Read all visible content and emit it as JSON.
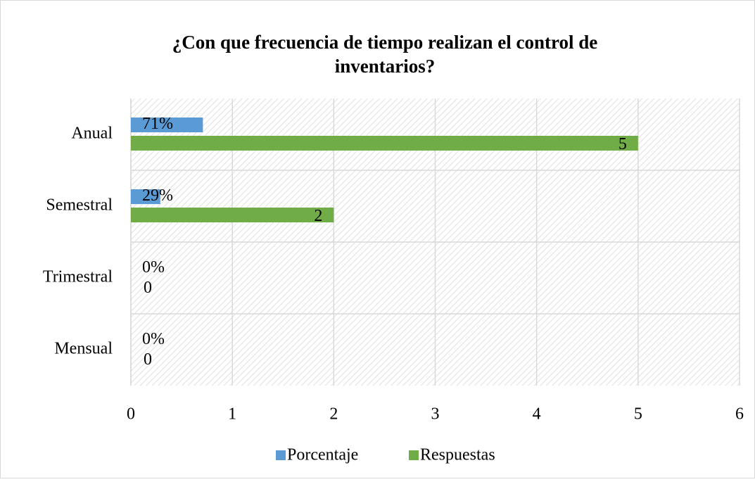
{
  "chart_data": {
    "type": "bar",
    "orientation": "horizontal",
    "title": "¿Con que frecuencia de tiempo realizan el control de inventarios?",
    "categories": [
      "Anual",
      "Semestral",
      "Trimestral",
      "Mensual"
    ],
    "series": [
      {
        "name": "Porcentaje",
        "color": "#5b9bd5",
        "values": [
          0.71,
          0.29,
          0,
          0
        ],
        "value_labels": [
          "71%",
          "29%",
          "0%",
          "0%"
        ]
      },
      {
        "name": "Respuestas",
        "color": "#70ad47",
        "values": [
          5,
          2,
          0,
          0
        ]
      }
    ],
    "xlim": [
      0,
      6
    ],
    "xticks": [
      0,
      1,
      2,
      3,
      4,
      5,
      6
    ],
    "grid": true,
    "legend": "bottom"
  }
}
